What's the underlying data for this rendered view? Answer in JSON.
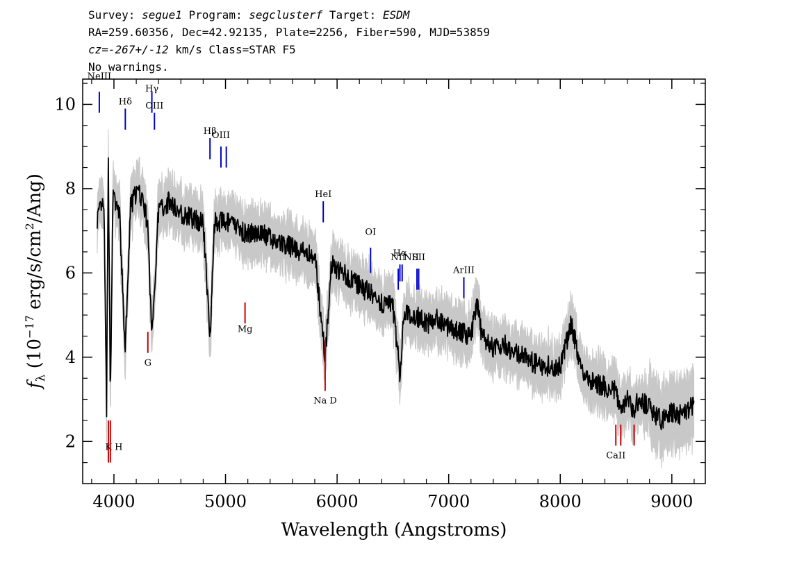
{
  "header": {
    "line1": {
      "survey_label": "Survey:",
      "survey": "segue1",
      "program_label": "Program:",
      "program": "segclusterf",
      "target_label": "Target:",
      "target": "ESDM"
    },
    "line2": "RA=259.60356, Dec=42.92135, Plate=2256, Fiber=590, MJD=53859",
    "line3": {
      "cz_label": "cz=",
      "cz": "-267+/-12",
      "rest": " km/s Class=STAR F5"
    },
    "line4": "No warnings."
  },
  "chart_data": {
    "type": "line",
    "xlabel": "Wavelength (Angstroms)",
    "ylabel": "f_λ (10^-17 erg/s/cm^2/Ang)",
    "ylabel_parts": {
      "f": "f",
      "sub": "λ",
      "pre": " (10",
      "exp1": "−17",
      "mid": " erg/s/cm",
      "exp2": "2",
      "post": "/Ang)"
    },
    "xlim": [
      3720,
      9300
    ],
    "ylim": [
      1.0,
      10.6
    ],
    "x_ticks": [
      4000,
      5000,
      6000,
      7000,
      8000,
      9000
    ],
    "x_tick_labels": [
      "4000",
      "5000",
      "6000",
      "7000",
      "8000",
      "9000"
    ],
    "y_ticks": [
      2,
      4,
      6,
      8,
      10
    ],
    "y_tick_labels": [
      "2",
      "4",
      "6",
      "8",
      "10"
    ],
    "grid": false,
    "colors": {
      "flux": "#000000",
      "error_band": "#c8c8c8",
      "emission": "#0000cc",
      "absorption": "#cc0000"
    },
    "series": [
      {
        "x": [
          3850,
          3880,
          3910,
          3934,
          3950,
          3968,
          3990,
          4050,
          4101,
          4150,
          4200,
          4250,
          4300,
          4340,
          4400,
          4500,
          4600,
          4700,
          4800,
          4861,
          4900,
          5000,
          5100,
          5200,
          5300,
          5400,
          5500,
          5600,
          5700,
          5800,
          5893,
          5950,
          6000,
          6100,
          6200,
          6300,
          6400,
          6500,
          6563,
          6600,
          6700,
          6800,
          6900,
          7000,
          7100,
          7200,
          7250,
          7300,
          7400,
          7500,
          7600,
          7700,
          7800,
          7900,
          8000,
          8100,
          8200,
          8300,
          8400,
          8500,
          8542,
          8600,
          8662,
          8700,
          8800,
          8900,
          9000,
          9100,
          9200
        ],
        "y": [
          7.3,
          7.5,
          7.6,
          2.8,
          8.6,
          3.0,
          7.8,
          7.4,
          4.1,
          7.6,
          7.9,
          7.8,
          7.2,
          4.5,
          7.5,
          7.7,
          7.4,
          7.3,
          7.2,
          4.5,
          7.2,
          7.2,
          7.1,
          6.9,
          7.0,
          6.8,
          6.7,
          6.6,
          6.5,
          6.4,
          4.0,
          6.2,
          6.1,
          5.9,
          5.7,
          5.5,
          5.3,
          5.2,
          3.6,
          5.0,
          5.0,
          4.8,
          4.9,
          4.7,
          4.6,
          4.5,
          5.3,
          4.5,
          4.2,
          4.3,
          4.1,
          4.0,
          3.8,
          3.8,
          3.8,
          4.8,
          3.6,
          3.4,
          3.3,
          3.2,
          2.8,
          3.0,
          2.7,
          3.0,
          2.8,
          2.5,
          2.7,
          2.6,
          2.9
        ]
      }
    ],
    "emission_lines": [
      {
        "label": "NeIII",
        "x": 3869
      },
      {
        "label": "Hδ",
        "x": 4102
      },
      {
        "label": "Hγ",
        "x": 4340
      },
      {
        "label": "OIII",
        "x": 4363
      },
      {
        "label": "Hβ",
        "x": 4861
      },
      {
        "label": "OIII",
        "x": 4959
      },
      {
        "label": "",
        "x": 5007
      },
      {
        "label": "HeI",
        "x": 5876
      },
      {
        "label": "OI",
        "x": 6300
      },
      {
        "label": "NII",
        "x": 6548
      },
      {
        "label": "Hα",
        "x": 6563
      },
      {
        "label": "",
        "x": 6583
      },
      {
        "label": "NII",
        "x": 6716
      },
      {
        "label": "SII",
        "x": 6731
      },
      {
        "label": "ArIII",
        "x": 7136
      }
    ],
    "absorption_lines": [
      {
        "label": "K H",
        "x": 3950
      },
      {
        "label": "",
        "x": 3968
      },
      {
        "label": "G",
        "x": 4304
      },
      {
        "label": "Mg",
        "x": 5175
      },
      {
        "label": "Na D",
        "x": 5893
      },
      {
        "label": "CaII",
        "x": 8498
      },
      {
        "label": "",
        "x": 8542
      },
      {
        "label": "",
        "x": 8662
      }
    ]
  }
}
